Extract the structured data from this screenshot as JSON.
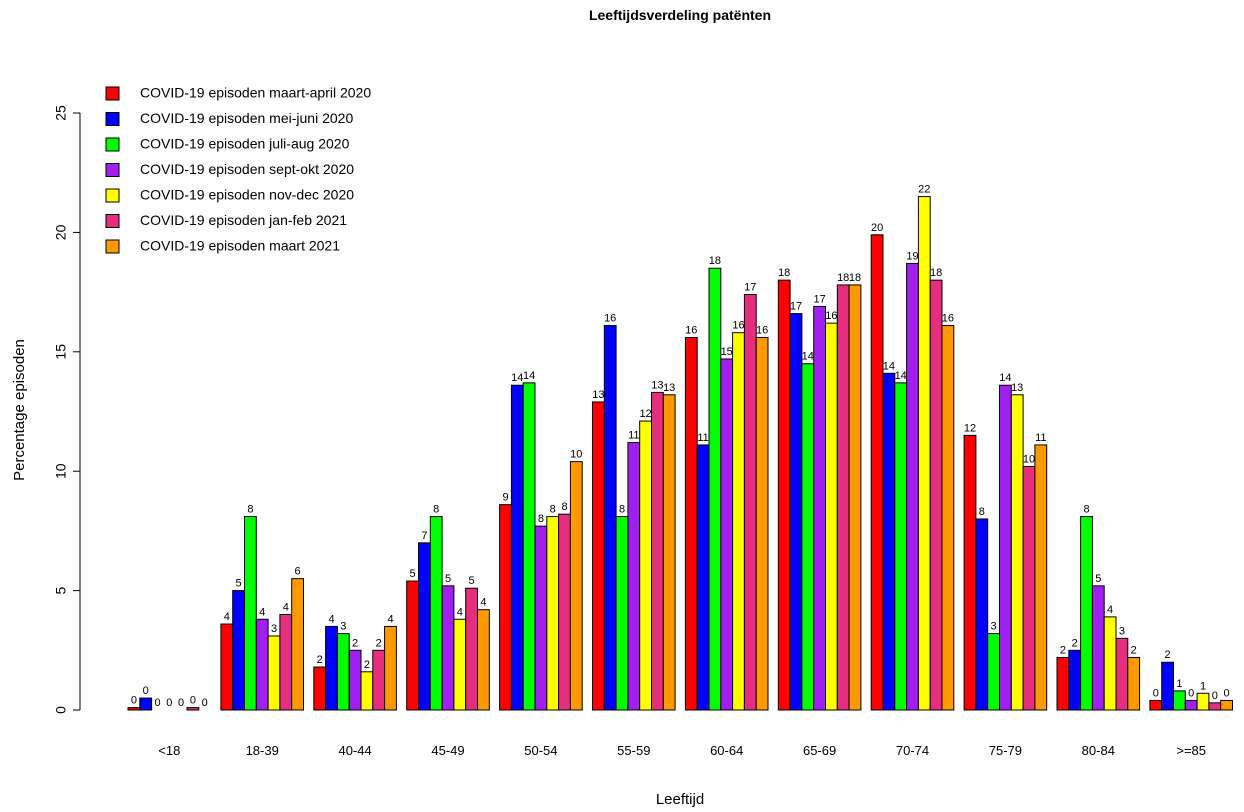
{
  "chart_data": {
    "type": "bar",
    "title": "Leeftijdsverdeling patënten",
    "xlabel": "Leeftijd",
    "ylabel": "Percentage episoden",
    "ylim": [
      0,
      25
    ],
    "yticks": [
      "0",
      "5",
      "10",
      "15",
      "20",
      "25"
    ],
    "grid": false,
    "legend_position": "top-left",
    "categories": [
      "<18",
      "18-39",
      "40-44",
      "45-49",
      "50-54",
      "55-59",
      "60-64",
      "65-69",
      "70-74",
      "75-79",
      "80-84",
      ">=85"
    ],
    "series": [
      {
        "name": "COVID-19 episoden maart-april 2020",
        "color": "#ff0000",
        "values": [
          0.1,
          3.6,
          1.8,
          5.4,
          8.6,
          12.9,
          15.6,
          18.0,
          19.9,
          11.5,
          2.2,
          0.4
        ],
        "labels": [
          "0",
          "4",
          "2",
          "5",
          "9",
          "13",
          "16",
          "18",
          "20",
          "12",
          "2",
          "0"
        ]
      },
      {
        "name": "COVID-19 episoden mei-juni 2020",
        "color": "#0000ff",
        "values": [
          0.5,
          5.0,
          3.5,
          7.0,
          13.6,
          16.1,
          11.1,
          16.6,
          14.1,
          8.0,
          2.5,
          2.0
        ],
        "labels": [
          "0",
          "5",
          "4",
          "7",
          "14",
          "16",
          "11",
          "17",
          "14",
          "8",
          "2",
          "2"
        ]
      },
      {
        "name": "COVID-19 episoden juli-aug 2020",
        "color": "#00ff00",
        "values": [
          0.0,
          8.1,
          3.2,
          8.1,
          13.7,
          8.1,
          18.5,
          14.5,
          13.7,
          3.2,
          8.1,
          0.8
        ],
        "labels": [
          "0",
          "8",
          "3",
          "8",
          "14",
          "8",
          "18",
          "14",
          "14",
          "3",
          "8",
          "1"
        ]
      },
      {
        "name": "COVID-19 episoden sept-okt 2020",
        "color": "#a020f0",
        "values": [
          0.0,
          3.8,
          2.5,
          5.2,
          7.7,
          11.2,
          14.7,
          16.9,
          18.7,
          13.6,
          5.2,
          0.4
        ],
        "labels": [
          "0",
          "4",
          "2",
          "5",
          "8",
          "11",
          "15",
          "17",
          "19",
          "14",
          "5",
          "0"
        ]
      },
      {
        "name": "COVID-19 episoden nov-dec 2020",
        "color": "#ffff00",
        "values": [
          0.0,
          3.1,
          1.6,
          3.8,
          8.1,
          12.1,
          15.8,
          16.2,
          21.5,
          13.2,
          3.9,
          0.7
        ],
        "labels": [
          "0",
          "3",
          "2",
          "4",
          "8",
          "12",
          "16",
          "16",
          "22",
          "13",
          "4",
          "1"
        ]
      },
      {
        "name": "COVID-19 episoden jan-feb 2021",
        "color": "#e62e7e",
        "values": [
          0.1,
          4.0,
          2.5,
          5.1,
          8.2,
          13.3,
          17.4,
          17.8,
          18.0,
          10.2,
          3.0,
          0.3
        ],
        "labels": [
          "0",
          "4",
          "2",
          "5",
          "8",
          "13",
          "17",
          "18",
          "18",
          "10",
          "3",
          "0"
        ]
      },
      {
        "name": "COVID-19 episoden maart 2021",
        "color": "#ff9900",
        "values": [
          0.0,
          5.5,
          3.5,
          4.2,
          10.4,
          13.2,
          15.6,
          17.8,
          16.1,
          11.1,
          2.2,
          0.4
        ],
        "labels": [
          "0",
          "6",
          "4",
          "4",
          "10",
          "13",
          "16",
          "18",
          "16",
          "11",
          "2",
          "0"
        ]
      }
    ]
  }
}
